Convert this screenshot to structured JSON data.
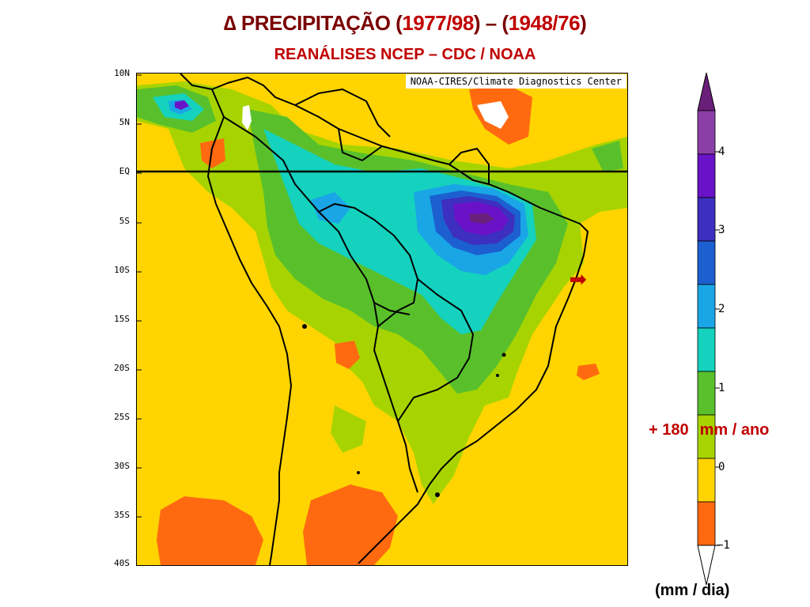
{
  "title": {
    "delta": "∆",
    "word": "PRECIPITAÇÃO",
    "open1": "(",
    "period1": "1977/98",
    "close1": ")",
    "dash": "–",
    "open2": "(",
    "period2": "1948/76",
    "close2": ")"
  },
  "subtitle": "REANÁLISES NCEP – CDC / NOAA",
  "map": {
    "credit": "NOAA-CIRES/Climate Diagnostics Center",
    "lat_labels": [
      "10N",
      "5N",
      "EQ",
      "5S",
      "10S",
      "15S",
      "20S",
      "25S",
      "30S",
      "35S",
      "40S"
    ],
    "equator_line": "EQ"
  },
  "colorbar": {
    "tick_labels": [
      "4",
      "3",
      "2",
      "1",
      "0",
      "−1"
    ],
    "colors": [
      "#6a1f7a",
      "#8b3ea6",
      "#6a12c8",
      "#3d2fbf",
      "#1c5fd0",
      "#1aa6e6",
      "#14d2be",
      "#59c02c",
      "#a7d400",
      "#ffd400",
      "#ff6a10",
      "#ffffff"
    ]
  },
  "annotation": {
    "value": "+ 180",
    "unit": "mm / ano"
  },
  "arrow_glyph": "➟",
  "units_label": "(mm / dia)"
}
